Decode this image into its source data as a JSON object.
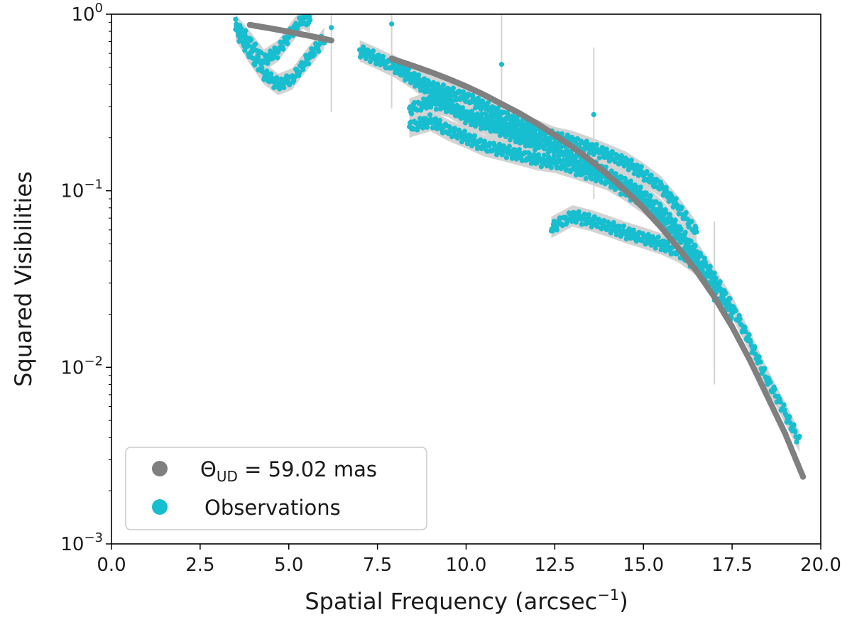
{
  "chart_data": {
    "type": "scatter",
    "xlabel": "Spatial Frequency  (arcsec",
    "xlabel_sup": "−1",
    "xlabel_end": ")",
    "ylabel": "Squared Visibilities",
    "xlim": [
      0,
      20
    ],
    "ylim": [
      0.001,
      1
    ],
    "yscale": "log",
    "x_ticks": [
      0,
      2.5,
      5,
      7.5,
      10,
      12.5,
      15,
      17.5,
      20
    ],
    "x_tick_labels": [
      "0.0",
      "2.5",
      "5.0",
      "7.5",
      "10.0",
      "12.5",
      "15.0",
      "17.5",
      "20.0"
    ],
    "y_ticks": [
      0.001,
      0.01,
      0.1,
      1
    ],
    "y_tick_labels": [
      {
        "base": "10",
        "exp": "−3"
      },
      {
        "base": "10",
        "exp": "−2"
      },
      {
        "base": "10",
        "exp": "−1"
      },
      {
        "base": "10",
        "exp": "0"
      }
    ],
    "grid": false,
    "legend_position": "bottom-left",
    "legend": [
      {
        "label_main": "Θ",
        "label_sub": "UD",
        "label_rest": " = 59.02 mas",
        "color": "#808080"
      },
      {
        "label": "Observations",
        "color": "#17becf"
      }
    ],
    "colors": {
      "model": "#808080",
      "observations": "#17becf",
      "errors": "#d3d3d3"
    },
    "series": [
      {
        "role": "model",
        "segments": [
          {
            "x": [
              3.9,
              4.5,
              5.0,
              5.5,
              6.2
            ],
            "y": [
              0.87,
              0.83,
              0.795,
              0.76,
              0.71
            ]
          },
          {
            "x": [
              7.9,
              8.5,
              9.0,
              9.5,
              10.0,
              10.5,
              11.0,
              11.5,
              12.0,
              12.5,
              13.0,
              13.5,
              14.0,
              14.5,
              15.0,
              15.5,
              16.0,
              16.5,
              17.0,
              17.5,
              18.0,
              18.5,
              19.0,
              19.5
            ],
            "y": [
              0.56,
              0.51,
              0.47,
              0.43,
              0.39,
              0.35,
              0.31,
              0.275,
              0.24,
              0.207,
              0.177,
              0.149,
              0.123,
              0.1,
              0.08,
              0.062,
              0.047,
              0.035,
              0.025,
              0.017,
              0.011,
              0.0068,
              0.0042,
              0.0024
            ]
          }
        ]
      },
      {
        "role": "observations",
        "segments": [
          {
            "x": [
              3.5,
              3.9,
              4.3,
              4.7,
              5.1,
              5.5,
              6.0
            ],
            "y": [
              0.82,
              0.6,
              0.46,
              0.4,
              0.43,
              0.55,
              0.73
            ]
          },
          {
            "x": [
              3.5,
              3.9,
              4.3,
              4.7,
              5.1,
              5.4,
              5.6
            ],
            "y": [
              0.87,
              0.7,
              0.55,
              0.62,
              0.8,
              0.95,
              0.9
            ]
          },
          {
            "x": [
              7.0,
              7.5,
              8.0,
              8.5,
              9.0,
              9.5,
              10.0,
              10.5,
              11.0,
              11.5,
              12.0,
              12.5,
              13.0,
              13.5,
              14.0,
              14.5,
              15.0,
              15.5,
              16.0,
              16.5,
              17.0,
              17.5,
              18.0,
              18.5,
              19.0,
              19.4
            ],
            "y": [
              0.62,
              0.56,
              0.5,
              0.43,
              0.36,
              0.31,
              0.27,
              0.25,
              0.23,
              0.21,
              0.19,
              0.17,
              0.155,
              0.14,
              0.125,
              0.11,
              0.095,
              0.078,
              0.06,
              0.045,
              0.032,
              0.022,
              0.014,
              0.0085,
              0.0055,
              0.0038
            ]
          },
          {
            "x": [
              7.9,
              8.5,
              9.0,
              9.5,
              10.0,
              10.5,
              11.0,
              11.5,
              12.0,
              12.5,
              13.0,
              13.5,
              14.0,
              14.5,
              15.0,
              15.5,
              16.0,
              16.5
            ],
            "y": [
              0.52,
              0.44,
              0.39,
              0.36,
              0.34,
              0.3,
              0.27,
              0.24,
              0.22,
              0.2,
              0.19,
              0.175,
              0.16,
              0.145,
              0.125,
              0.105,
              0.08,
              0.058
            ]
          },
          {
            "x": [
              8.4,
              9.0,
              9.5,
              10.0,
              10.5,
              11.0,
              11.5,
              12.0,
              12.5,
              13.0,
              13.5,
              14.0,
              14.5,
              15.0,
              15.5,
              16.0,
              16.5
            ],
            "y": [
              0.23,
              0.25,
              0.22,
              0.2,
              0.18,
              0.17,
              0.16,
              0.15,
              0.145,
              0.135,
              0.125,
              0.115,
              0.1,
              0.085,
              0.07,
              0.055,
              0.042
            ]
          },
          {
            "x": [
              8.4,
              9.0,
              9.5,
              10.0,
              10.5,
              11.0,
              11.5,
              12.0
            ],
            "y": [
              0.29,
              0.32,
              0.3,
              0.26,
              0.24,
              0.22,
              0.2,
              0.18
            ]
          },
          {
            "x": [
              12.4,
              13.0,
              13.5,
              14.0,
              14.5,
              15.0,
              15.5,
              16.0,
              16.5,
              17.0,
              17.5
            ],
            "y": [
              0.062,
              0.072,
              0.068,
              0.063,
              0.058,
              0.054,
              0.05,
              0.045,
              0.038,
              0.029,
              0.019
            ]
          }
        ],
        "outliers": {
          "x": [
            6.2,
            7.9,
            11.0,
            13.6,
            17.0,
            17.0
          ],
          "y": [
            0.84,
            0.88,
            0.52,
            0.27,
            0.028,
            0.024
          ]
        }
      }
    ]
  }
}
